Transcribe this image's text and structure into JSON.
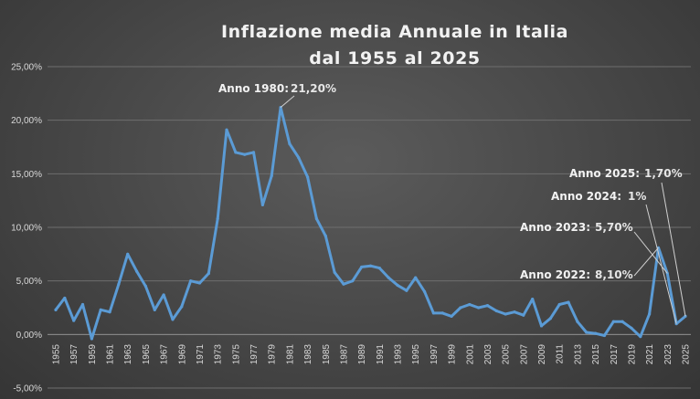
{
  "chart_data": {
    "type": "line",
    "title": [
      "Inflazione media Annuale  in Italia",
      "dal 1955 al 2025"
    ],
    "xlabel": "",
    "ylabel": "",
    "ylim": [
      -5,
      25
    ],
    "yticks": [
      "-5,00%",
      "0,00%",
      "5,00%",
      "10,00%",
      "15,00%",
      "20,00%",
      "25,00%"
    ],
    "grid": true,
    "legend": "none",
    "line_color": "#5b9bd5",
    "x": [
      1955,
      1956,
      1957,
      1958,
      1959,
      1960,
      1961,
      1962,
      1963,
      1964,
      1965,
      1966,
      1967,
      1968,
      1969,
      1970,
      1971,
      1972,
      1973,
      1974,
      1975,
      1976,
      1977,
      1978,
      1979,
      1980,
      1981,
      1982,
      1983,
      1984,
      1985,
      1986,
      1987,
      1988,
      1989,
      1990,
      1991,
      1992,
      1993,
      1994,
      1995,
      1996,
      1997,
      1998,
      1999,
      2000,
      2001,
      2002,
      2003,
      2004,
      2005,
      2006,
      2007,
      2008,
      2009,
      2010,
      2011,
      2012,
      2013,
      2014,
      2015,
      2016,
      2017,
      2018,
      2019,
      2020,
      2021,
      2022,
      2023,
      2024,
      2025
    ],
    "xtick_labels": [
      "1955",
      "1957",
      "1959",
      "1961",
      "1963",
      "1965",
      "1967",
      "1969",
      "1971",
      "1973",
      "1975",
      "1977",
      "1979",
      "1981",
      "1983",
      "1985",
      "1987",
      "1989",
      "1991",
      "1993",
      "1995",
      "1997",
      "1999",
      "2001",
      "2003",
      "2005",
      "2007",
      "2009",
      "2011",
      "2013",
      "2015",
      "2017",
      "2019",
      "2021",
      "2023",
      "2025"
    ],
    "series": [
      {
        "values": [
          2.3,
          3.4,
          1.3,
          2.8,
          -0.4,
          2.3,
          2.1,
          4.7,
          7.5,
          5.9,
          4.5,
          2.3,
          3.7,
          1.4,
          2.6,
          5.0,
          4.8,
          5.7,
          10.8,
          19.1,
          17.0,
          16.8,
          17.0,
          12.1,
          14.8,
          21.2,
          17.8,
          16.5,
          14.7,
          10.8,
          9.2,
          5.8,
          4.7,
          5.0,
          6.3,
          6.4,
          6.2,
          5.3,
          4.6,
          4.1,
          5.3,
          4.0,
          2.0,
          2.0,
          1.7,
          2.5,
          2.8,
          2.5,
          2.7,
          2.2,
          1.9,
          2.1,
          1.8,
          3.3,
          0.8,
          1.5,
          2.8,
          3.0,
          1.2,
          0.2,
          0.1,
          -0.1,
          1.2,
          1.2,
          0.6,
          -0.2,
          1.9,
          8.1,
          5.7,
          1.0,
          1.7
        ]
      }
    ],
    "annotations": [
      {
        "label": "Anno 1980:",
        "value": "21,20%"
      },
      {
        "label": "Anno 2025:",
        "value": "1,70%"
      },
      {
        "label": "Anno 2024:",
        "value": "1%"
      },
      {
        "label": "Anno 2023:",
        "value": "5,70%"
      },
      {
        "label": "Anno 2022:",
        "value": "8,10%"
      }
    ]
  }
}
